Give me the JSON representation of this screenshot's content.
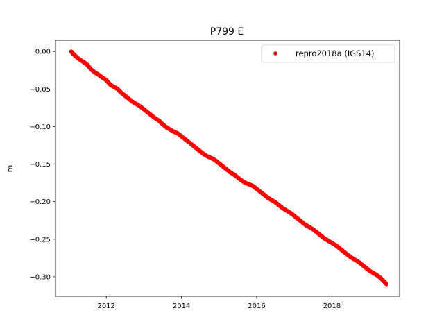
{
  "chart_data": {
    "type": "scatter",
    "title": "P799 E",
    "xlabel": "",
    "ylabel": "m",
    "xlim": [
      2010.65,
      2019.8
    ],
    "ylim": [
      -0.326,
      0.015
    ],
    "x_ticks": [
      2012,
      2014,
      2016,
      2018
    ],
    "x_tick_labels": [
      "2012",
      "2014",
      "2016",
      "2018"
    ],
    "y_ticks": [
      0.0,
      -0.05,
      -0.1,
      -0.15,
      -0.2,
      -0.25,
      -0.3
    ],
    "y_tick_labels": [
      "0.00",
      "−0.05",
      "−0.10",
      "−0.15",
      "−0.20",
      "−0.25",
      "−0.30"
    ],
    "grid": false,
    "legend_position": "top-right",
    "series": [
      {
        "name": "repro2018a (IGS14)",
        "color": "#ff0000",
        "marker": "circle",
        "x": [
          2011.07,
          2011.12,
          2011.2,
          2011.3,
          2011.4,
          2011.5,
          2011.6,
          2011.7,
          2011.8,
          2011.9,
          2012.0,
          2012.1,
          2012.2,
          2012.3,
          2012.4,
          2012.5,
          2012.6,
          2012.7,
          2012.8,
          2012.9,
          2013.0,
          2013.1,
          2013.2,
          2013.3,
          2013.4,
          2013.5,
          2013.6,
          2013.7,
          2013.8,
          2013.9,
          2014.0,
          2014.1,
          2014.2,
          2014.3,
          2014.4,
          2014.5,
          2014.6,
          2014.7,
          2014.8,
          2014.9,
          2015.0,
          2015.1,
          2015.2,
          2015.3,
          2015.4,
          2015.5,
          2015.6,
          2015.7,
          2015.8,
          2015.9,
          2016.0,
          2016.1,
          2016.2,
          2016.3,
          2016.4,
          2016.5,
          2016.6,
          2016.7,
          2016.8,
          2016.9,
          2017.0,
          2017.1,
          2017.2,
          2017.3,
          2017.4,
          2017.5,
          2017.6,
          2017.7,
          2017.8,
          2017.9,
          2018.0,
          2018.1,
          2018.2,
          2018.3,
          2018.4,
          2018.5,
          2018.6,
          2018.7,
          2018.8,
          2018.9,
          2019.0,
          2019.1,
          2019.2,
          2019.3,
          2019.4,
          2019.45
        ],
        "y": [
          0.0,
          -0.003,
          -0.007,
          -0.011,
          -0.014,
          -0.018,
          -0.024,
          -0.028,
          -0.031,
          -0.035,
          -0.038,
          -0.044,
          -0.047,
          -0.05,
          -0.055,
          -0.059,
          -0.063,
          -0.067,
          -0.07,
          -0.073,
          -0.077,
          -0.081,
          -0.085,
          -0.089,
          -0.092,
          -0.097,
          -0.101,
          -0.104,
          -0.107,
          -0.109,
          -0.113,
          -0.117,
          -0.121,
          -0.125,
          -0.129,
          -0.133,
          -0.137,
          -0.14,
          -0.142,
          -0.145,
          -0.149,
          -0.153,
          -0.157,
          -0.161,
          -0.164,
          -0.168,
          -0.172,
          -0.175,
          -0.177,
          -0.179,
          -0.183,
          -0.187,
          -0.191,
          -0.195,
          -0.198,
          -0.201,
          -0.205,
          -0.209,
          -0.212,
          -0.215,
          -0.219,
          -0.223,
          -0.227,
          -0.231,
          -0.234,
          -0.237,
          -0.241,
          -0.245,
          -0.249,
          -0.252,
          -0.255,
          -0.258,
          -0.262,
          -0.266,
          -0.27,
          -0.274,
          -0.277,
          -0.28,
          -0.284,
          -0.288,
          -0.292,
          -0.295,
          -0.298,
          -0.302,
          -0.307,
          -0.31
        ]
      }
    ]
  }
}
